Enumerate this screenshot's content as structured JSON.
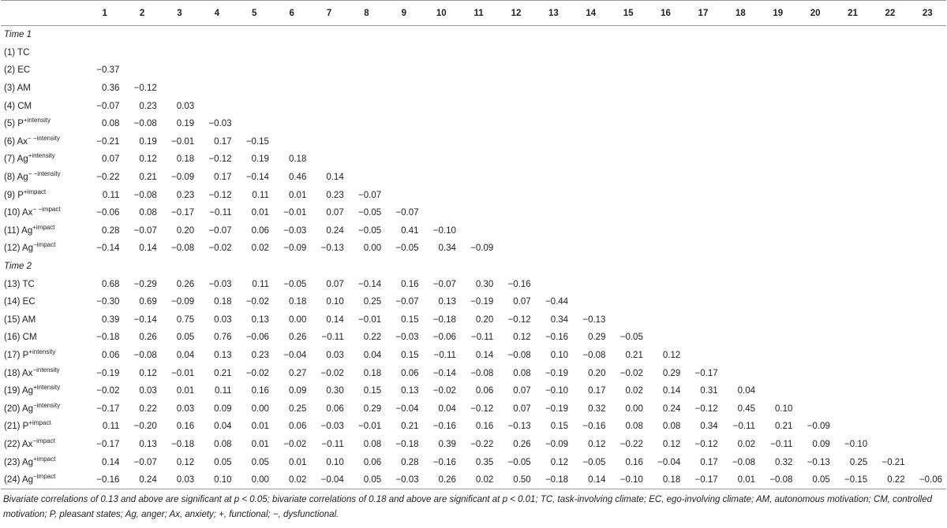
{
  "table": {
    "columns": [
      "1",
      "2",
      "3",
      "4",
      "5",
      "6",
      "7",
      "8",
      "9",
      "10",
      "11",
      "12",
      "13",
      "14",
      "15",
      "16",
      "17",
      "18",
      "19",
      "20",
      "21",
      "22",
      "23"
    ],
    "sections": [
      {
        "title": "Time 1",
        "rows": [
          {
            "label": "(1) TC",
            "values": []
          },
          {
            "label": "(2) EC",
            "values": [
              "−0.37"
            ]
          },
          {
            "label": "(3) AM",
            "values": [
              "0.36",
              "−0.12"
            ]
          },
          {
            "label": "(4) CM",
            "values": [
              "−0.07",
              "0.23",
              "0.03"
            ]
          },
          {
            "label": "(5) P",
            "sup": "+intensity",
            "values": [
              "0.08",
              "−0.08",
              "0.19",
              "−0.03"
            ]
          },
          {
            "label": "(6) Ax",
            "sup": "− −intensity",
            "values": [
              "−0.21",
              "0.19",
              "−0.01",
              "0.17",
              "−0.15"
            ]
          },
          {
            "label": "(7) Ag",
            "sup": "+intensity",
            "values": [
              "0.07",
              "0.12",
              "0.18",
              "−0.12",
              "0.19",
              "0.18"
            ]
          },
          {
            "label": "(8) Ag",
            "sup": "− −intensity",
            "values": [
              "−0.22",
              "0.21",
              "−0.09",
              "0.17",
              "−0.14",
              "0.46",
              "0.14"
            ]
          },
          {
            "label": "(9) P",
            "sup": "+impact",
            "values": [
              "0.11",
              "−0.08",
              "0.23",
              "−0.12",
              "0.11",
              "0.01",
              "0.23",
              "−0.07"
            ]
          },
          {
            "label": "(10) Ax",
            "sup": "− −impact",
            "values": [
              "−0.06",
              "0.08",
              "−0.17",
              "−0.11",
              "0.01",
              "−0.01",
              "0.07",
              "−0.05",
              "−0.07"
            ]
          },
          {
            "label": "(11) Ag",
            "sup": "+impact",
            "values": [
              "0.28",
              "−0.07",
              "0.20",
              "−0.07",
              "0.06",
              "−0.03",
              "0.24",
              "−0.05",
              "0.41",
              "−0.10"
            ]
          },
          {
            "label": "(12) Ag",
            "sup": "−impact",
            "values": [
              "−0.14",
              "0.14",
              "−0.08",
              "−0.02",
              "0.02",
              "−0.09",
              "−0.13",
              "0.00",
              "−0.05",
              "0.34",
              "−0.09"
            ]
          }
        ]
      },
      {
        "title": "Time 2",
        "rows": [
          {
            "label": "(13) TC",
            "values": [
              "0.68",
              "−0.29",
              "0.26",
              "−0.03",
              "0.11",
              "−0.05",
              "0.07",
              "−0.14",
              "0.16",
              "−0.07",
              "0.30",
              "−0.16"
            ]
          },
          {
            "label": "(14) EC",
            "values": [
              "−0.30",
              "0.69",
              "−0.09",
              "0.18",
              "−0.02",
              "0.18",
              "0.10",
              "0.25",
              "−0.07",
              "0.13",
              "−0.19",
              "0.07",
              "−0.44"
            ]
          },
          {
            "label": "(15) AM",
            "values": [
              "0.39",
              "−0.14",
              "0.75",
              "0.03",
              "0.13",
              "0.00",
              "0.14",
              "−0.01",
              "0.15",
              "−0.18",
              "0.20",
              "−0.12",
              "0.34",
              "−0.13"
            ]
          },
          {
            "label": "(16) CM",
            "values": [
              "−0.18",
              "0.26",
              "0.05",
              "0.76",
              "−0.06",
              "0.26",
              "−0.11",
              "0.22",
              "−0.03",
              "−0.06",
              "−0.11",
              "0.12",
              "−0.16",
              "0.29",
              "−0.05"
            ]
          },
          {
            "label": "(17) P",
            "sup": "+intensity",
            "values": [
              "0.06",
              "−0.08",
              "0.04",
              "0.13",
              "0.23",
              "−0.04",
              "0.03",
              "0.04",
              "0.15",
              "−0.11",
              "0.14",
              "−0.08",
              "0.10",
              "−0.08",
              "0.21",
              "0.12"
            ]
          },
          {
            "label": "(18) Ax",
            "sup": "−intensity",
            "values": [
              "−0.19",
              "0.12",
              "−0.01",
              "0.21",
              "−0.02",
              "0.27",
              "−0.02",
              "0.18",
              "0.06",
              "−0.14",
              "−0.08",
              "0.08",
              "−0.19",
              "0.20",
              "−0.02",
              "0.29",
              "−0.17"
            ]
          },
          {
            "label": "(19) Ag",
            "sup": "+intensity",
            "values": [
              "−0.02",
              "0.03",
              "0.01",
              "0.11",
              "0.16",
              "0.09",
              "0.30",
              "0.15",
              "0.13",
              "−0.02",
              "0.06",
              "0.07",
              "−0.10",
              "0.17",
              "0.02",
              "0.14",
              "0.31",
              "0.04"
            ]
          },
          {
            "label": "(20) Ag",
            "sup": "−intensity",
            "values": [
              "−0.17",
              "0.22",
              "0.03",
              "0.09",
              "0.00",
              "0.25",
              "0.06",
              "0.29",
              "−0.04",
              "0.04",
              "−0.12",
              "0.07",
              "−0.19",
              "0.32",
              "0.00",
              "0.24",
              "−0.12",
              "0.45",
              "0.10"
            ]
          },
          {
            "label": "(21) P",
            "sup": "+impact",
            "values": [
              "0.11",
              "−0.20",
              "0.16",
              "0.04",
              "0.01",
              "0.06",
              "−0.03",
              "−0.01",
              "0.21",
              "−0.16",
              "0.16",
              "−0.13",
              "0.15",
              "−0.16",
              "0.08",
              "0.08",
              "0.34",
              "−0.11",
              "0.21",
              "−0.09"
            ]
          },
          {
            "label": "(22) Ax",
            "sup": "−impact",
            "values": [
              "−0.17",
              "0.13",
              "−0.18",
              "0.08",
              "0.01",
              "−0.02",
              "−0.11",
              "0.08",
              "−0.18",
              "0.39",
              "−0.22",
              "0.26",
              "−0.09",
              "0.12",
              "−0.22",
              "0.12",
              "−0.12",
              "0.02",
              "−0.11",
              "0.09",
              "−0.10"
            ]
          },
          {
            "label": "(23) Ag",
            "sup": "+impact",
            "values": [
              "0.14",
              "−0.07",
              "0.12",
              "0.05",
              "0.05",
              "0.01",
              "0.10",
              "0.06",
              "0.28",
              "−0.16",
              "0.35",
              "−0.05",
              "0.12",
              "−0.05",
              "0.16",
              "−0.04",
              "0.17",
              "−0.08",
              "0.32",
              "−0.13",
              "0.25",
              "−0.21"
            ]
          },
          {
            "label": "(24) Ag",
            "sup": "−impact",
            "values": [
              "−0.16",
              "0.24",
              "0.03",
              "0.10",
              "0.00",
              "0.02",
              "−0.04",
              "0.05",
              "−0.03",
              "0.26",
              "0.02",
              "0.50",
              "−0.18",
              "0.14",
              "−0.10",
              "0.18",
              "−0.17",
              "0.01",
              "−0.08",
              "0.05",
              "−0.15",
              "0.22",
              "−0.06"
            ]
          }
        ]
      }
    ],
    "footnote": "Bivariate correlations of 0.13 and above are significant at p < 0.05; bivariate correlations of 0.18 and above are significant at p < 0.01; TC, task-involving climate; EC, ego-involving climate; AM, autonomous motivation; CM, controlled motivation; P, pleasant states; Ag, anger; Ax, anxiety; +, functional; −, dysfunctional."
  }
}
